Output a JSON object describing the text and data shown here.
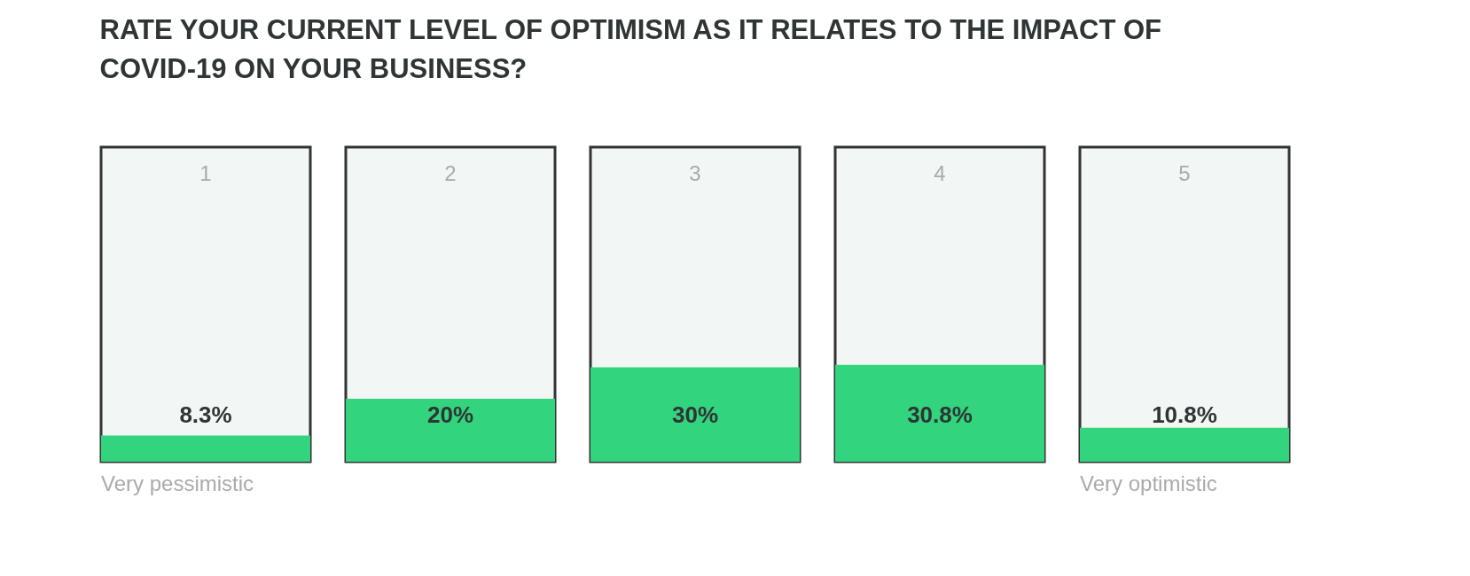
{
  "chart_data": {
    "type": "bar",
    "title": "RATE YOUR CURRENT LEVEL OF OPTIMISM AS IT RELATES TO THE IMPACT OF COVID-19 ON YOUR BUSINESS?",
    "categories": [
      "1",
      "2",
      "3",
      "4",
      "5"
    ],
    "values": [
      8.3,
      20,
      30,
      30.8,
      10.8
    ],
    "value_labels": [
      "8.3%",
      "20%",
      "30%",
      "30.8%",
      "10.8%"
    ],
    "color": "#32d47e",
    "ylim": [
      0,
      100
    ],
    "annotations": [
      "Very pessimistic",
      "Very optimistic"
    ]
  }
}
